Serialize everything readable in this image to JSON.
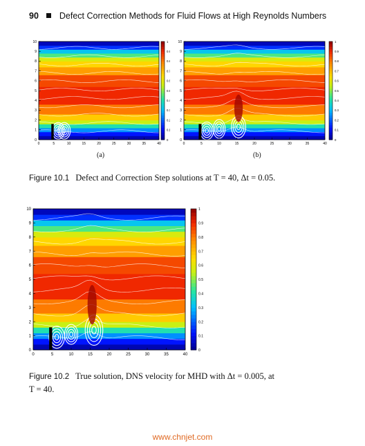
{
  "header": {
    "page_number": "90",
    "running_title": "Defect Correction Methods for Fluid Flows at High Reynolds Numbers"
  },
  "figure_1": {
    "label": "Figure 10.1",
    "caption": "Defect and Correction Step solutions at T = 40, Δt = 0.05.",
    "panel_a_label": "(a)",
    "panel_b_label": "(b)"
  },
  "figure_2": {
    "label": "Figure 10.2",
    "caption_line1": "True solution, DNS velocity for MHD with Δt = 0.005, at",
    "caption_line2": "T = 40."
  },
  "footer": {
    "watermark": "www.chnjet.com"
  },
  "chart_data": [
    {
      "type": "heatmap",
      "panel": "(a)",
      "xlim": [
        0,
        40
      ],
      "ylim": [
        0,
        10
      ],
      "x_ticks": [
        "0",
        "5",
        "10",
        "15",
        "20",
        "25",
        "30",
        "35",
        "40"
      ],
      "y_ticks": [
        "0",
        "1",
        "2",
        "3",
        "4",
        "5",
        "6",
        "7",
        "8",
        "9",
        "10"
      ],
      "colorbar_ticks": [
        "0",
        "0.1",
        "0.2",
        "0.3",
        "0.4",
        "0.5",
        "0.6",
        "0.7",
        "0.8",
        "0.9",
        "1"
      ],
      "colorbar_range": [
        0,
        1
      ]
    },
    {
      "type": "heatmap",
      "panel": "(b)",
      "xlim": [
        0,
        40
      ],
      "ylim": [
        0,
        10
      ],
      "x_ticks": [
        "0",
        "5",
        "10",
        "15",
        "20",
        "25",
        "30",
        "35",
        "40"
      ],
      "y_ticks": [
        "0",
        "1",
        "2",
        "3",
        "4",
        "5",
        "6",
        "7",
        "8",
        "9",
        "10"
      ],
      "colorbar_ticks": [
        "0",
        "0.1",
        "0.2",
        "0.3",
        "0.4",
        "0.5",
        "0.6",
        "0.7",
        "0.8",
        "0.9",
        "1"
      ],
      "colorbar_range": [
        0,
        1
      ]
    },
    {
      "type": "heatmap",
      "panel": "Figure 10.2",
      "xlim": [
        0,
        40
      ],
      "ylim": [
        0,
        10
      ],
      "x_ticks": [
        "0",
        "5",
        "10",
        "15",
        "20",
        "25",
        "30",
        "35",
        "40"
      ],
      "y_ticks": [
        "0",
        "1",
        "2",
        "3",
        "4",
        "5",
        "6",
        "7",
        "8",
        "9",
        "10"
      ],
      "colorbar_ticks": [
        "0",
        "0.1",
        "0.2",
        "0.3",
        "0.4",
        "0.5",
        "0.6",
        "0.7",
        "0.8",
        "0.9",
        "1"
      ],
      "colorbar_range": [
        0,
        1
      ]
    }
  ]
}
